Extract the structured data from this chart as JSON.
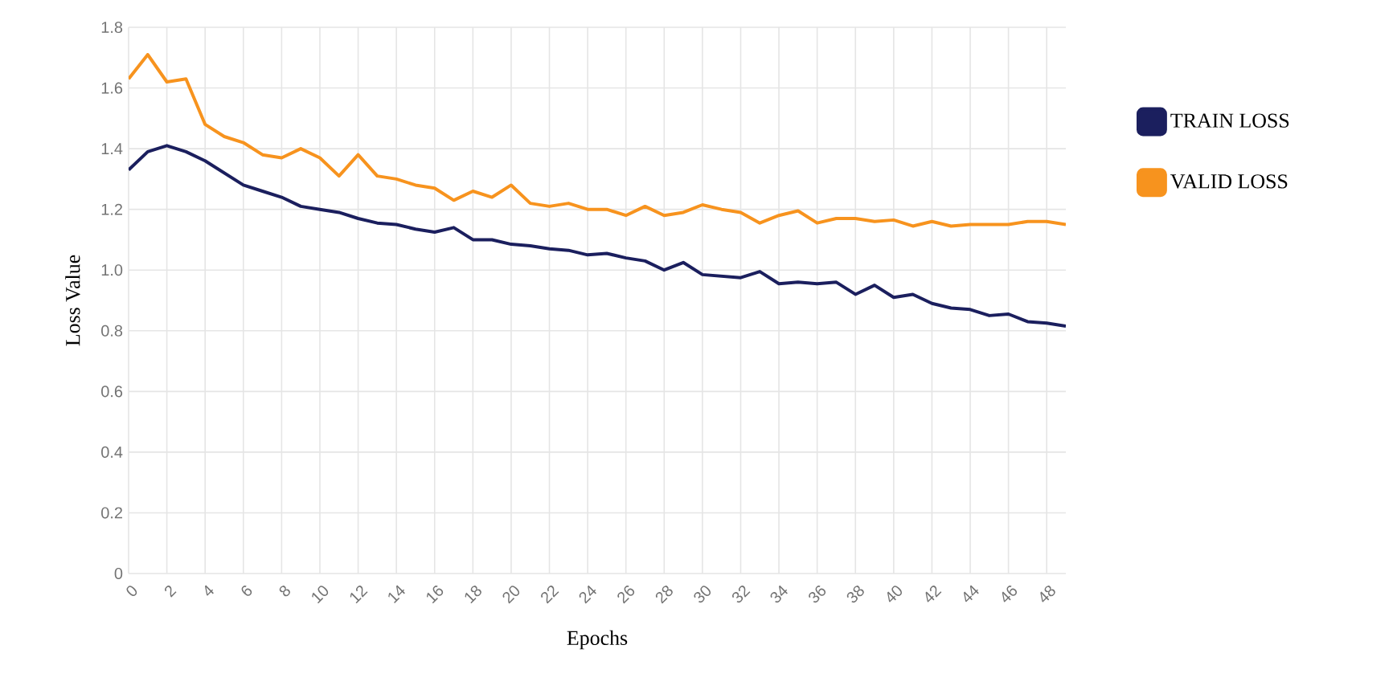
{
  "chart_data": {
    "type": "line",
    "xlabel": "Epochs",
    "ylabel": "Loss Value",
    "x": [
      0,
      1,
      2,
      3,
      4,
      5,
      6,
      7,
      8,
      9,
      10,
      11,
      12,
      13,
      14,
      15,
      16,
      17,
      18,
      19,
      20,
      21,
      22,
      23,
      24,
      25,
      26,
      27,
      28,
      29,
      30,
      31,
      32,
      33,
      34,
      35,
      36,
      37,
      38,
      39,
      40,
      41,
      42,
      43,
      44,
      45,
      46,
      47,
      48,
      49
    ],
    "series": [
      {
        "name": "TRAIN LOSS",
        "color": "#1b1f5e",
        "values": [
          1.33,
          1.39,
          1.41,
          1.39,
          1.36,
          1.32,
          1.28,
          1.26,
          1.24,
          1.21,
          1.2,
          1.19,
          1.17,
          1.155,
          1.15,
          1.135,
          1.125,
          1.14,
          1.1,
          1.1,
          1.085,
          1.08,
          1.07,
          1.065,
          1.05,
          1.055,
          1.04,
          1.03,
          1.0,
          1.025,
          0.985,
          0.98,
          0.975,
          0.995,
          0.955,
          0.96,
          0.955,
          0.96,
          0.92,
          0.95,
          0.91,
          0.92,
          0.89,
          0.875,
          0.87,
          0.85,
          0.855,
          0.83,
          0.825,
          0.815
        ]
      },
      {
        "name": "VALID LOSS",
        "color": "#f7931e",
        "values": [
          1.63,
          1.71,
          1.62,
          1.63,
          1.48,
          1.44,
          1.42,
          1.38,
          1.37,
          1.4,
          1.37,
          1.31,
          1.38,
          1.31,
          1.3,
          1.28,
          1.27,
          1.23,
          1.26,
          1.24,
          1.28,
          1.22,
          1.21,
          1.22,
          1.2,
          1.2,
          1.18,
          1.21,
          1.18,
          1.19,
          1.215,
          1.2,
          1.19,
          1.155,
          1.18,
          1.195,
          1.155,
          1.17,
          1.17,
          1.16,
          1.165,
          1.145,
          1.16,
          1.145,
          1.15,
          1.15,
          1.15,
          1.16,
          1.16,
          1.15
        ]
      }
    ],
    "xlim": [
      0,
      49
    ],
    "xticks": [
      0,
      2,
      4,
      6,
      8,
      10,
      12,
      14,
      16,
      18,
      20,
      22,
      24,
      26,
      28,
      30,
      32,
      34,
      36,
      38,
      40,
      42,
      44,
      46,
      48
    ],
    "ylim": [
      0,
      1.8
    ],
    "yticks": [
      0,
      0.2,
      0.4,
      0.6,
      0.8,
      {
        "value": 1,
        "label": "1.0"
      },
      1.2,
      1.4,
      1.6,
      1.8
    ],
    "grid": true,
    "legend": "right",
    "marker": "none",
    "line_style": "solid"
  }
}
